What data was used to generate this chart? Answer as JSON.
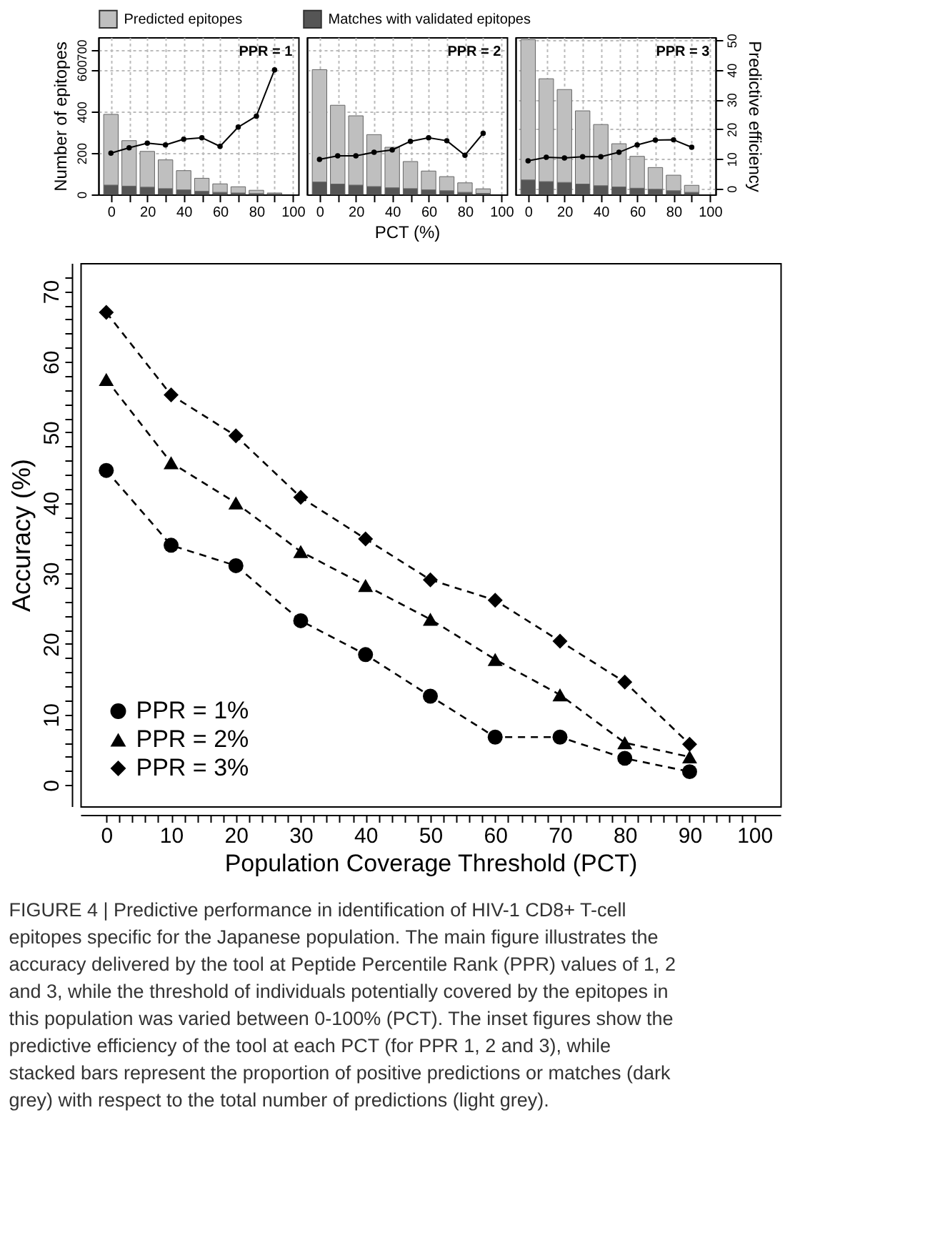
{
  "chart_data": [
    {
      "type": "bar",
      "stacked": true,
      "ylabel": "Number of epitopes",
      "annotations": [
        "PPR = 1"
      ],
      "x": [
        0,
        10,
        20,
        30,
        40,
        50,
        60,
        70,
        80,
        90
      ],
      "legend": "top",
      "grid": true,
      "series": [
        {
          "name": "Matches with validated epitopes",
          "color": "#555555",
          "values": [
            45,
            40,
            35,
            28,
            22,
            15,
            10,
            7,
            4,
            2
          ]
        },
        {
          "name": "Predicted epitopes",
          "color": "#bfbfbf",
          "values": [
            342,
            220,
            173,
            139,
            93,
            63,
            41,
            30,
            16,
            5
          ]
        },
        {
          "type": "line",
          "axis": "y2",
          "color": "#000000",
          "marker": "circle",
          "values": [
            11.9,
            13.7,
            15.3,
            14.7,
            16.6,
            17.1,
            14.2,
            20.7,
            24.4,
            40.0
          ]
        }
      ],
      "xlim": [
        -7,
        103
      ],
      "ylim": [
        0,
        760
      ],
      "y2lim": [
        -2,
        51
      ],
      "xticks": [
        0,
        {
          "value": 10,
          "label": null
        },
        20,
        {
          "value": 30,
          "label": null
        },
        40,
        {
          "value": 50,
          "label": null
        },
        60,
        {
          "value": 70,
          "label": null
        },
        80,
        {
          "value": 90,
          "label": null
        },
        100
      ],
      "yticks": [
        0,
        200,
        400,
        600,
        700
      ]
    },
    {
      "type": "bar",
      "stacked": true,
      "xlabel": "PCT (%)",
      "annotations": [
        "PPR = 2"
      ],
      "x": [
        0,
        10,
        20,
        30,
        40,
        50,
        60,
        70,
        80,
        90
      ],
      "grid": true,
      "tick_labels": "x",
      "y2ticks": [
        0,
        10,
        20,
        30,
        40,
        50
      ],
      "series": [
        {
          "color": "#555555",
          "values": [
            60,
            50,
            45,
            38,
            32,
            28,
            22,
            18,
            10,
            5
          ]
        },
        {
          "color": "#bfbfbf",
          "values": [
            543,
            381,
            335,
            251,
            196,
            131,
            91,
            68,
            46,
            22
          ]
        },
        {
          "type": "line",
          "axis": "y2",
          "color": "#000000",
          "marker": "circle",
          "values": [
            9.8,
            11.0,
            11.0,
            12.2,
            13.0,
            15.9,
            17.1,
            16.1,
            11.2,
            18.6
          ]
        }
      ],
      "xlim": [
        -7,
        103
      ],
      "ylim": [
        0,
        760
      ],
      "y2lim": [
        -2,
        51
      ],
      "xticks": [
        0,
        {
          "value": 10,
          "label": null
        },
        20,
        {
          "value": 30,
          "label": null
        },
        40,
        {
          "value": 50,
          "label": null
        },
        60,
        {
          "value": 70,
          "label": null
        },
        80,
        {
          "value": 90,
          "label": null
        },
        100
      ],
      "yticks": [
        0,
        200,
        400,
        600,
        700
      ]
    },
    {
      "type": "bar",
      "stacked": true,
      "y2label": "Predictive efficiency",
      "annotations": [
        "PPR = 3"
      ],
      "x": [
        0,
        10,
        20,
        30,
        40,
        50,
        60,
        70,
        80,
        90
      ],
      "grid": true,
      "series": [
        {
          "color": "#555555",
          "values": [
            70,
            62,
            58,
            50,
            42,
            36,
            30,
            25,
            18,
            10
          ]
        },
        {
          "color": "#bfbfbf",
          "values": [
            678,
            497,
            449,
            354,
            296,
            209,
            154,
            105,
            75,
            34
          ]
        },
        {
          "type": "line",
          "axis": "y2",
          "color": "#000000",
          "marker": "circle",
          "values": [
            9.3,
            10.5,
            10.3,
            10.7,
            10.7,
            12.2,
            14.7,
            16.3,
            16.4,
            13.9
          ]
        }
      ],
      "xlim": [
        -7,
        103
      ],
      "ylim": [
        0,
        760
      ],
      "y2lim": [
        -2,
        51
      ],
      "xticks": [
        0,
        {
          "value": 10,
          "label": null
        },
        20,
        {
          "value": 30,
          "label": null
        },
        40,
        {
          "value": 50,
          "label": null
        },
        60,
        {
          "value": 70,
          "label": null
        },
        80,
        {
          "value": 90,
          "label": null
        },
        100
      ],
      "y2ticks": [
        0,
        10,
        20,
        30,
        40,
        50
      ]
    },
    {
      "type": "line",
      "xlabel": "Population Coverage Threshold (PCT)",
      "ylabel": "Accuracy (%)",
      "x": [
        0,
        10,
        20,
        30,
        40,
        50,
        60,
        70,
        80,
        90
      ],
      "series": [
        {
          "name": "PPR = 1%",
          "color": "#000000",
          "marker": "circle",
          "values": [
            44.6,
            34.0,
            31.1,
            23.3,
            18.5,
            12.6,
            6.8,
            6.8,
            3.8,
            1.9
          ]
        },
        {
          "name": "PPR = 2%",
          "color": "#000000",
          "marker": "triangle",
          "values": [
            57.5,
            45.7,
            40.0,
            33.1,
            28.3,
            23.5,
            17.8,
            12.8,
            6.0,
            4.0
          ]
        },
        {
          "name": "PPR = 3%",
          "color": "#000000",
          "marker": "diamond",
          "values": [
            67.0,
            55.3,
            49.5,
            40.8,
            34.9,
            29.1,
            26.2,
            20.4,
            14.6,
            5.8
          ]
        }
      ],
      "line_style": "dashed",
      "legend": "bottom left",
      "grid": false,
      "xlim": [
        -4,
        104
      ],
      "ylim": [
        -3,
        74
      ],
      "xticks": [
        0,
        {
          "value": 2,
          "label": null
        },
        {
          "value": 4,
          "label": null
        },
        {
          "value": 6,
          "label": null
        },
        {
          "value": 8,
          "label": null
        },
        10,
        {
          "value": 12,
          "label": null
        },
        {
          "value": 14,
          "label": null
        },
        {
          "value": 16,
          "label": null
        },
        {
          "value": 18,
          "label": null
        },
        20,
        {
          "value": 22,
          "label": null
        },
        {
          "value": 24,
          "label": null
        },
        {
          "value": 26,
          "label": null
        },
        {
          "value": 28,
          "label": null
        },
        30,
        {
          "value": 32,
          "label": null
        },
        {
          "value": 34,
          "label": null
        },
        {
          "value": 36,
          "label": null
        },
        {
          "value": 38,
          "label": null
        },
        40,
        {
          "value": 42,
          "label": null
        },
        {
          "value": 44,
          "label": null
        },
        {
          "value": 46,
          "label": null
        },
        {
          "value": 48,
          "label": null
        },
        50,
        {
          "value": 52,
          "label": null
        },
        {
          "value": 54,
          "label": null
        },
        {
          "value": 56,
          "label": null
        },
        {
          "value": 58,
          "label": null
        },
        60,
        {
          "value": 62,
          "label": null
        },
        {
          "value": 64,
          "label": null
        },
        {
          "value": 66,
          "label": null
        },
        {
          "value": 68,
          "label": null
        },
        70,
        {
          "value": 72,
          "label": null
        },
        {
          "value": 74,
          "label": null
        },
        {
          "value": 76,
          "label": null
        },
        {
          "value": 78,
          "label": null
        },
        80,
        {
          "value": 82,
          "label": null
        },
        {
          "value": 84,
          "label": null
        },
        {
          "value": 86,
          "label": null
        },
        {
          "value": 88,
          "label": null
        },
        90,
        {
          "value": 92,
          "label": null
        },
        {
          "value": 94,
          "label": null
        },
        {
          "value": 96,
          "label": null
        },
        {
          "value": 98,
          "label": null
        },
        100
      ],
      "yticks": [
        0,
        {
          "value": 2,
          "label": null
        },
        {
          "value": 4,
          "label": null
        },
        {
          "value": 6,
          "label": null
        },
        {
          "value": 8,
          "label": null
        },
        10,
        {
          "value": 12,
          "label": null
        },
        {
          "value": 14,
          "label": null
        },
        {
          "value": 16,
          "label": null
        },
        {
          "value": 18,
          "label": null
        },
        20,
        {
          "value": 22,
          "label": null
        },
        {
          "value": 24,
          "label": null
        },
        {
          "value": 26,
          "label": null
        },
        {
          "value": 28,
          "label": null
        },
        30,
        {
          "value": 32,
          "label": null
        },
        {
          "value": 34,
          "label": null
        },
        {
          "value": 36,
          "label": null
        },
        {
          "value": 38,
          "label": null
        },
        40,
        {
          "value": 42,
          "label": null
        },
        {
          "value": 44,
          "label": null
        },
        {
          "value": 46,
          "label": null
        },
        {
          "value": 48,
          "label": null
        },
        50,
        {
          "value": 52,
          "label": null
        },
        {
          "value": 54,
          "label": null
        },
        {
          "value": 56,
          "label": null
        },
        {
          "value": 58,
          "label": null
        },
        60,
        {
          "value": 62,
          "label": null
        },
        {
          "value": 64,
          "label": null
        },
        {
          "value": 66,
          "label": null
        },
        {
          "value": 68,
          "label": null
        },
        70,
        {
          "value": 72,
          "label": null
        }
      ],
      "annotations": [
        "FIGURE 4 | Predictive performance in identification of HIV-1 CD8+ T-cell epitopes specific for the Japanese population. The main figure illustrates the accuracy delivered by the tool at Peptide Percentile Rank (PPR) values of 1, 2 and 3, while the threshold of individuals potentially covered by the epitopes in this population was varied between 0-100% (PCT). The inset figures show the predictive efficiency of the tool at each PCT (for PPR 1, 2 and 3), while stacked bars represent the proportion of positive predictions or matches (dark grey) with respect to the total number of predictions (light grey)."
      ]
    }
  ]
}
